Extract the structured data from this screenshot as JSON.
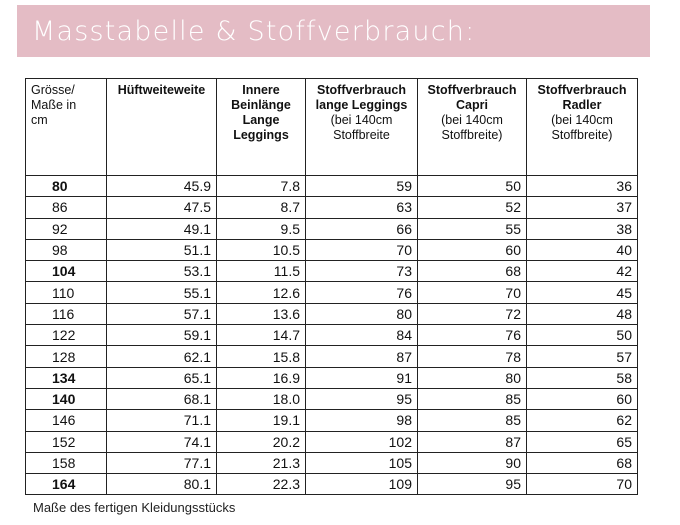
{
  "title": "Masstabelle & Stoffverbrauch:",
  "colors": {
    "banner": "#e4bcc5",
    "title_text": "#ffffff",
    "grid": "#222222"
  },
  "table": {
    "headers": [
      {
        "lines": [
          "Grösse/",
          "Maße in",
          "cm"
        ],
        "bold": [
          false,
          false,
          false
        ]
      },
      {
        "lines": [
          "Hüftweiteweite"
        ],
        "bold": [
          true
        ]
      },
      {
        "lines": [
          "Innere",
          "Beinlänge",
          "Lange",
          "Leggings"
        ],
        "bold": [
          true,
          true,
          true,
          true
        ]
      },
      {
        "lines": [
          "Stoffverbrauch",
          "lange Leggings",
          "(bei 140cm",
          "Stoffbreite"
        ],
        "bold": [
          true,
          true,
          false,
          false
        ]
      },
      {
        "lines": [
          "Stoffverbrauch",
          "Capri",
          "(bei 140cm",
          "Stoffbreite)"
        ],
        "bold": [
          true,
          true,
          false,
          false
        ]
      },
      {
        "lines": [
          "Stoffverbrauch",
          "Radler",
          "(bei 140cm",
          "Stoffbreite)"
        ],
        "bold": [
          true,
          true,
          false,
          false
        ]
      }
    ],
    "rows": [
      {
        "size": "80",
        "bold": true,
        "huefte": "45.9",
        "bein": "7.8",
        "leggings": "59",
        "capri": "50",
        "radler": "36"
      },
      {
        "size": "86",
        "bold": false,
        "huefte": "47.5",
        "bein": "8.7",
        "leggings": "63",
        "capri": "52",
        "radler": "37"
      },
      {
        "size": "92",
        "bold": false,
        "huefte": "49.1",
        "bein": "9.5",
        "leggings": "66",
        "capri": "55",
        "radler": "38"
      },
      {
        "size": "98",
        "bold": false,
        "huefte": "51.1",
        "bein": "10.5",
        "leggings": "70",
        "capri": "60",
        "radler": "40"
      },
      {
        "size": "104",
        "bold": true,
        "huefte": "53.1",
        "bein": "11.5",
        "leggings": "73",
        "capri": "68",
        "radler": "42"
      },
      {
        "size": "110",
        "bold": false,
        "huefte": "55.1",
        "bein": "12.6",
        "leggings": "76",
        "capri": "70",
        "radler": "45"
      },
      {
        "size": "116",
        "bold": false,
        "huefte": "57.1",
        "bein": "13.6",
        "leggings": "80",
        "capri": "72",
        "radler": "48"
      },
      {
        "size": "122",
        "bold": false,
        "huefte": "59.1",
        "bein": "14.7",
        "leggings": "84",
        "capri": "76",
        "radler": "50"
      },
      {
        "size": "128",
        "bold": false,
        "huefte": "62.1",
        "bein": "15.8",
        "leggings": "87",
        "capri": "78",
        "radler": "57"
      },
      {
        "size": "134",
        "bold": true,
        "huefte": "65.1",
        "bein": "16.9",
        "leggings": "91",
        "capri": "80",
        "radler": "58"
      },
      {
        "size": "140",
        "bold": true,
        "huefte": "68.1",
        "bein": "18.0",
        "leggings": "95",
        "capri": "85",
        "radler": "60"
      },
      {
        "size": "146",
        "bold": false,
        "huefte": "71.1",
        "bein": "19.1",
        "leggings": "98",
        "capri": "85",
        "radler": "62"
      },
      {
        "size": "152",
        "bold": false,
        "huefte": "74.1",
        "bein": "20.2",
        "leggings": "102",
        "capri": "87",
        "radler": "65"
      },
      {
        "size": "158",
        "bold": false,
        "huefte": "77.1",
        "bein": "21.3",
        "leggings": "105",
        "capri": "90",
        "radler": "68"
      },
      {
        "size": "164",
        "bold": true,
        "huefte": "80.1",
        "bein": "22.3",
        "leggings": "109",
        "capri": "95",
        "radler": "70"
      }
    ]
  },
  "footnote": "Maße des fertigen Kleidungsstücks"
}
